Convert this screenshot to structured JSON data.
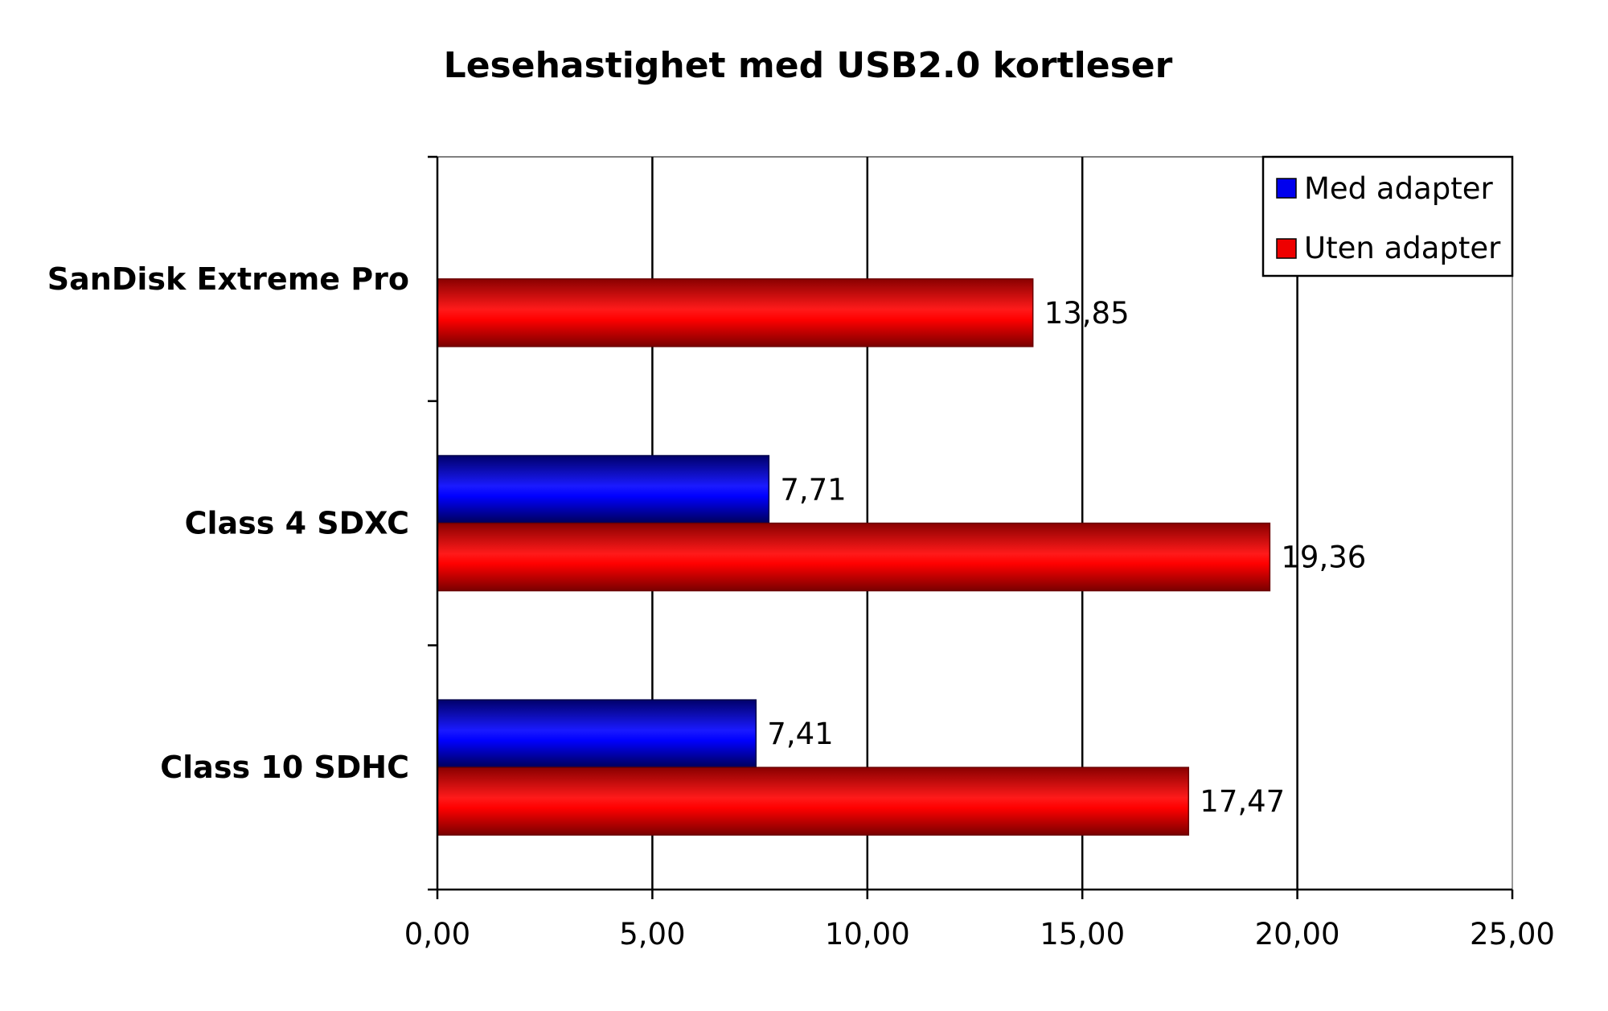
{
  "chart_data": {
    "type": "bar",
    "orientation": "horizontal",
    "title": "Lesehastighet med USB2.0 kortleser",
    "xlabel": "",
    "ylabel": "",
    "categories": [
      "SanDisk Extreme Pro",
      "Class 4 SDXC",
      "Class 10 SDHC"
    ],
    "series": [
      {
        "name": "Med adapter",
        "color": "#0000ee",
        "values": [
          null,
          7.71,
          7.41
        ],
        "labels": [
          "",
          "7,71",
          "7,41"
        ]
      },
      {
        "name": "Uten adapter",
        "color": "#ee0000",
        "values": [
          13.85,
          19.36,
          17.47
        ],
        "labels": [
          "13,85",
          "19,36",
          "17,47"
        ]
      }
    ],
    "xlim": [
      0,
      25
    ],
    "x_ticks": [
      0,
      5,
      10,
      15,
      20,
      25
    ],
    "x_tick_labels": [
      "0,00",
      "5,00",
      "10,00",
      "15,00",
      "20,00",
      "25,00"
    ],
    "grid": true,
    "legend_position": "top-right"
  }
}
